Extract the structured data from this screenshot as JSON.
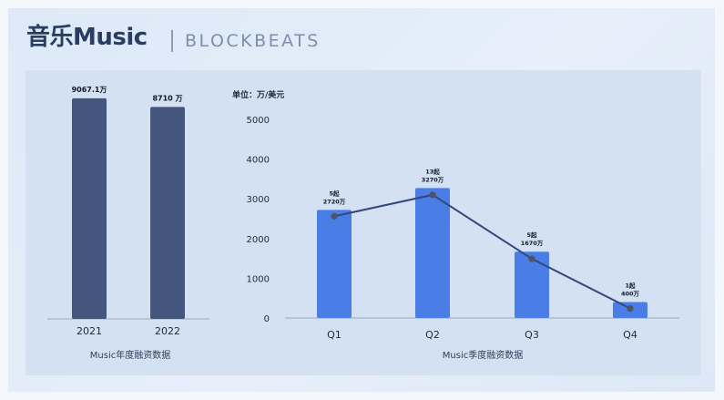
{
  "header": {
    "title": "音乐Music",
    "brand": "BLOCKBEATS"
  },
  "colors": {
    "annual_bar": "#44567d",
    "quarterly_bar": "#4a7ee6",
    "line": "#34477a"
  },
  "chart_data": [
    {
      "type": "bar",
      "categories": [
        "2021",
        "2022"
      ],
      "values": [
        9067.1,
        8710
      ],
      "data_labels": [
        "9067.1万",
        "8710 万"
      ],
      "xlabel": "Music年度融资数据",
      "ylim": [
        0,
        9400
      ]
    },
    {
      "type": "bar",
      "unit_label": "单位：万/美元",
      "categories": [
        "Q1",
        "Q2",
        "Q3",
        "Q4"
      ],
      "values": [
        2720,
        3270,
        1670,
        400
      ],
      "deal_counts": [
        5,
        13,
        5,
        1
      ],
      "data_labels": [
        [
          "5起",
          "2720万"
        ],
        [
          "13起",
          "3270万"
        ],
        [
          "5起",
          "1670万"
        ],
        [
          "1起",
          "400万"
        ]
      ],
      "line_values": [
        2560,
        3100,
        1490,
        240
      ],
      "yticks": [
        0,
        1000,
        2000,
        3000,
        4000,
        5000
      ],
      "ylim": [
        0,
        5000
      ],
      "grid": false,
      "xlabel": "Music季度融资数据"
    }
  ]
}
